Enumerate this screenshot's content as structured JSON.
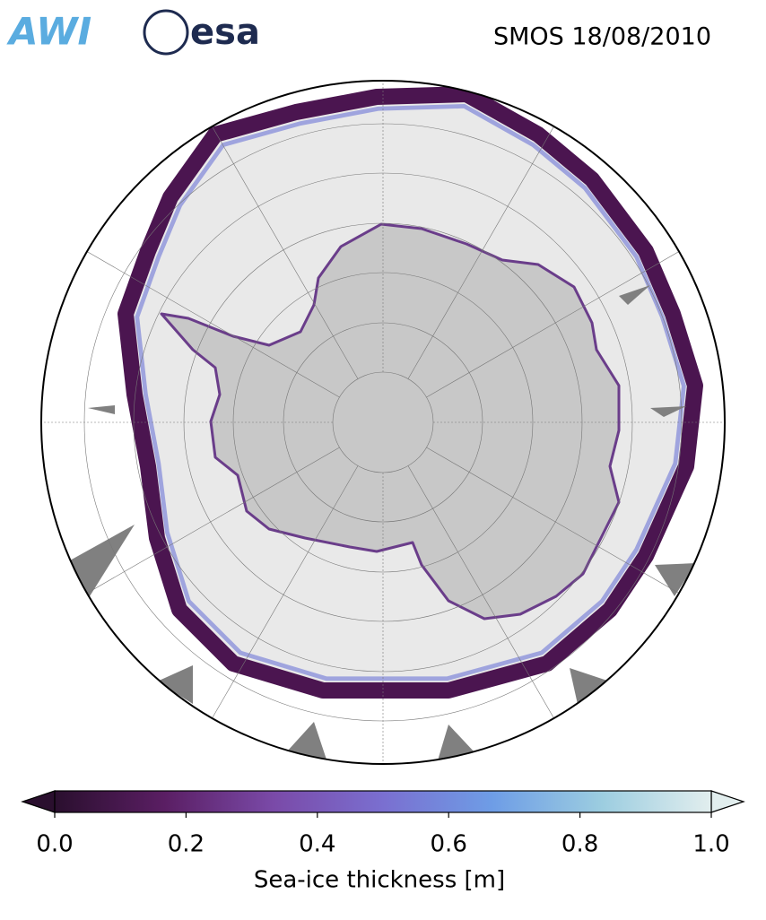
{
  "header": {
    "logos": [
      "AWI",
      "esa"
    ],
    "title": "SMOS 18/08/2010"
  },
  "colorbar": {
    "label": "Sea-ice thickness [m]",
    "lim": [
      0,
      1
    ],
    "ticks": [
      {
        "value": 0,
        "label": "0.0"
      },
      0.2,
      0.4,
      0.6,
      0.8,
      {
        "value": 1,
        "label": "1.0"
      }
    ],
    "colors": [
      "#2a0f2e",
      "#5a1e63",
      "#7a4aa8",
      "#7a6fd0",
      "#6e9de6",
      "#9ccde0",
      "#e2eeee"
    ]
  }
}
